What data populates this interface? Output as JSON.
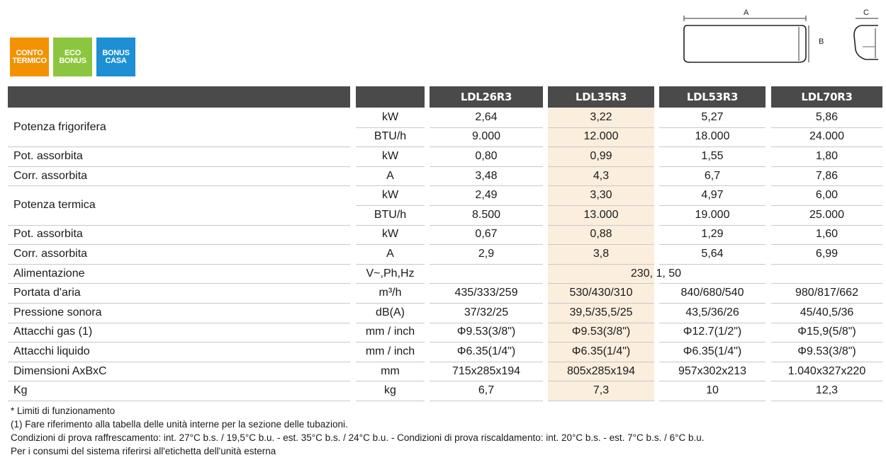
{
  "badges": [
    {
      "label": "CONTO\nTERMICO",
      "color": "#f39200"
    },
    {
      "label": "ECO\nBONUS",
      "color": "#8cc63f"
    },
    {
      "label": "BONUS\nCASA",
      "color": "#1d8fd4"
    }
  ],
  "dimensions_labels": {
    "a": "A",
    "b": "B",
    "c": "C"
  },
  "models": [
    "LDL26R3",
    "LDL35R3",
    "LDL53R3",
    "LDL70R3"
  ],
  "rows": [
    {
      "label": "Potenza frigorifera",
      "unit": "kW",
      "values": [
        "2,64",
        "3,22",
        "5,27",
        "5,86"
      ]
    },
    {
      "label": "",
      "unit": "BTU/h",
      "values": [
        "9.000",
        "12.000",
        "18.000",
        "24.000"
      ]
    },
    {
      "label": "Pot. assorbita",
      "unit": "kW",
      "values": [
        "0,80",
        "0,99",
        "1,55",
        "1,80"
      ]
    },
    {
      "label": "Corr. assorbita",
      "unit": "A",
      "values": [
        "3,48",
        "4,3",
        "6,7",
        "7,86"
      ]
    },
    {
      "label": "Potenza termica",
      "unit": "kW",
      "values": [
        "2,49",
        "3,30",
        "4,97",
        "6,00"
      ]
    },
    {
      "label": "",
      "unit": "BTU/h",
      "values": [
        "8.500",
        "13.000",
        "19.000",
        "25.000"
      ]
    },
    {
      "label": "Pot. assorbita",
      "unit": "kW",
      "values": [
        "0,67",
        "0,88",
        "1,29",
        "1,60"
      ]
    },
    {
      "label": "Corr. assorbita",
      "unit": "A",
      "values": [
        "2,9",
        "3,8",
        "5,64",
        "6,99"
      ]
    },
    {
      "label": "Alimentazione",
      "unit": "V~,Ph,Hz",
      "merged": "230, 1, 50"
    },
    {
      "label": "Portata d'aria",
      "unit": "m³/h",
      "values": [
        "435/333/259",
        "530/430/310",
        "840/680/540",
        "980/817/662"
      ]
    },
    {
      "label": "Pressione sonora",
      "unit": "dB(A)",
      "values": [
        "37/32/25",
        "39,5/35,5/25",
        "43,5/36/26",
        "45/40,5/36"
      ]
    },
    {
      "label": "Attacchi gas  (1)",
      "unit": "mm / inch",
      "values": [
        "Φ9.53(3/8\")",
        "Φ9.53(3/8\")",
        "Φ12.7(1/2\")",
        "Φ15,9(5/8\")"
      ]
    },
    {
      "label": "Attacchi liquido",
      "unit": "mm / inch",
      "values": [
        "Φ6.35(1/4\")",
        "Φ6.35(1/4\")",
        "Φ6.35(1/4\")",
        "Φ9.53(3/8\")"
      ]
    },
    {
      "label": "Dimensioni AxBxC",
      "unit": "mm",
      "values": [
        "715x285x194",
        "805x285x194",
        "957x302x213",
        "1.040x327x220"
      ]
    },
    {
      "label": "Kg",
      "unit": "kg",
      "values": [
        "6,7",
        "7,3",
        "10",
        "12,3"
      ]
    }
  ],
  "notes": [
    "* Limiti di funzionamento",
    "(1) Fare riferimento alla tabella delle unità interne per la sezione delle tubazioni.",
    "Condizioni di prova raffrescamento: int. 27°C b.s. / 19,5°C b.u. - est. 35°C b.s. / 24°C b.u. - Condizioni di prova riscaldamento: int. 20°C b.s. - est. 7°C b.s. / 6°C b.u.",
    "Per i consumi del sistema riferirsi all'etichetta dell'unità esterna"
  ]
}
